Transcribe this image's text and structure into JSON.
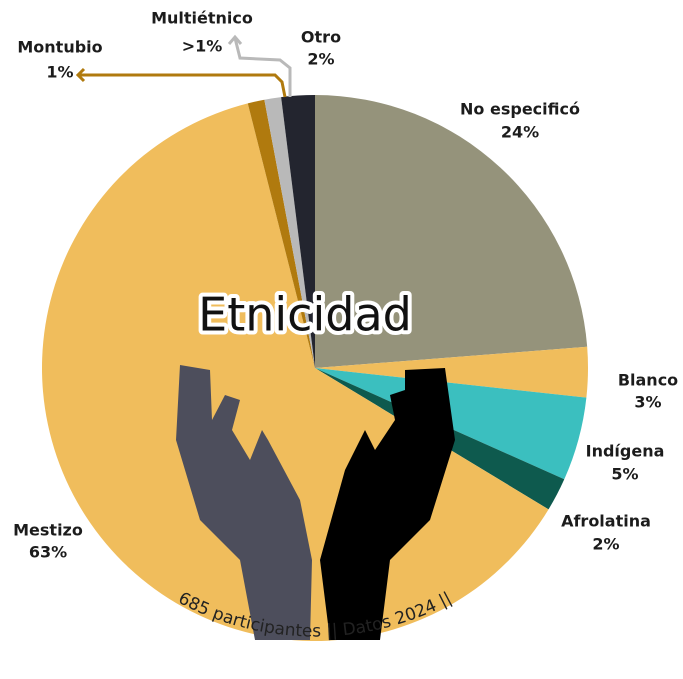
{
  "chart_data": {
    "type": "pie",
    "title": "Etnicidad",
    "subtitle": "685 participantes || Datos 2024 ||",
    "categories": [
      "No especificó",
      "Blanco",
      "Indígena",
      "Afrolatina",
      "Mestizo",
      "Montubio",
      "Multiétnico",
      "Otro"
    ],
    "values": [
      24,
      3,
      5,
      2,
      63,
      1,
      1,
      2
    ],
    "value_labels": [
      "24%",
      "3%",
      "5%",
      "2%",
      "63%",
      "1%",
      ">1%",
      "2%"
    ],
    "colors": [
      "#95937b",
      "#f0bd5c",
      "#3bbfbf",
      "#0e5a4e",
      "#f0bd5c",
      "#b07a0e",
      "#b9b9b9",
      "#23252f"
    ]
  }
}
